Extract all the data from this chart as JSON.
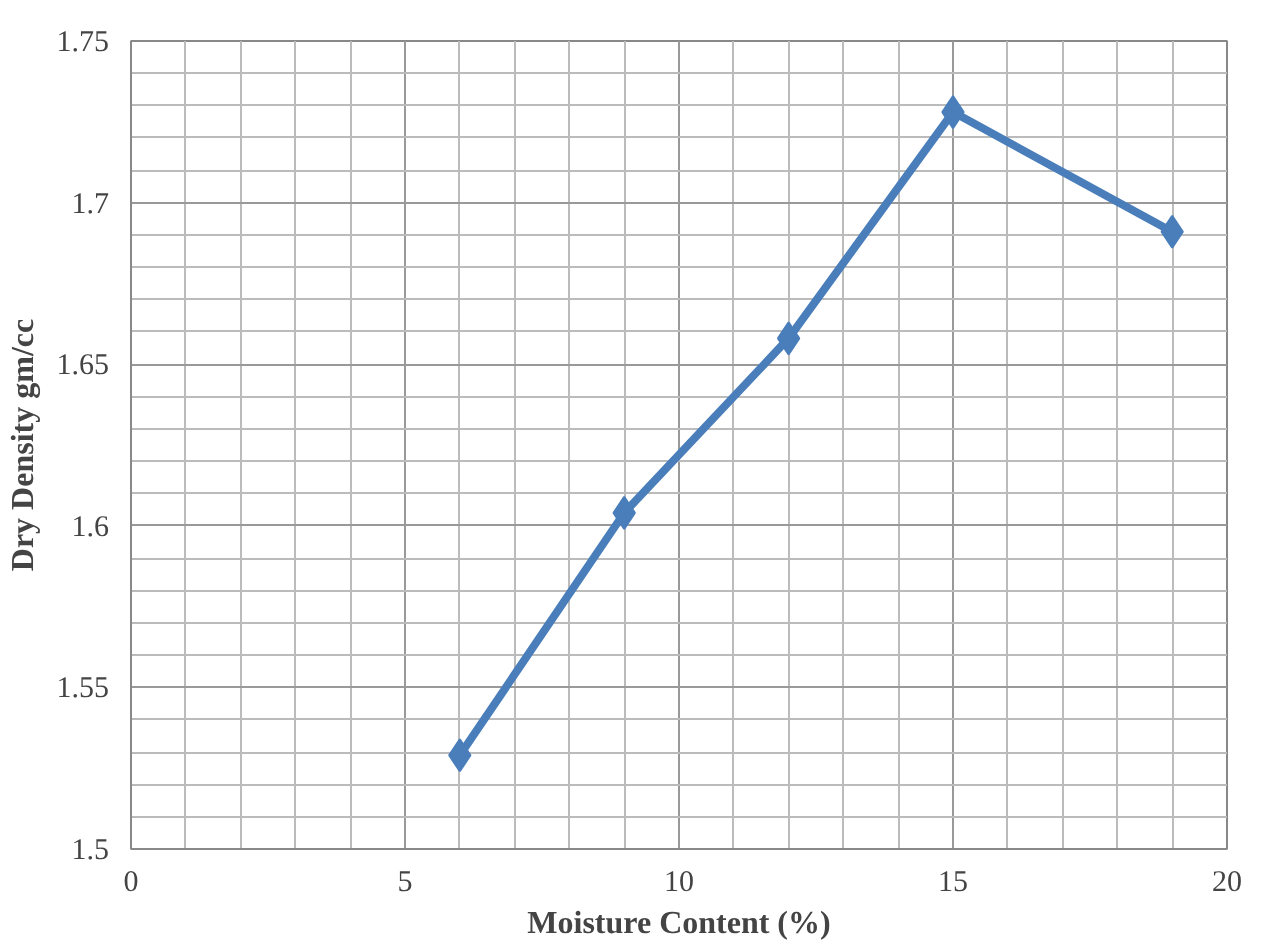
{
  "chart_data": {
    "type": "line",
    "xlabel": "Moisture Content (%)",
    "ylabel": "Dry Density gm/cc",
    "x": [
      6,
      9,
      12,
      15,
      19
    ],
    "series": [
      {
        "color": "#4a7ebb",
        "values": [
          1.529,
          1.604,
          1.658,
          1.728,
          1.691
        ]
      }
    ],
    "xlim": [
      0,
      20
    ],
    "xticks": [
      0,
      5,
      10,
      15,
      20
    ],
    "ylim": [
      1.5,
      1.75
    ],
    "yticks": [
      1.5,
      1.55,
      1.6,
      1.65,
      1.7,
      1.75
    ],
    "grid": true,
    "marker": "diamond",
    "line_style": "solid"
  }
}
